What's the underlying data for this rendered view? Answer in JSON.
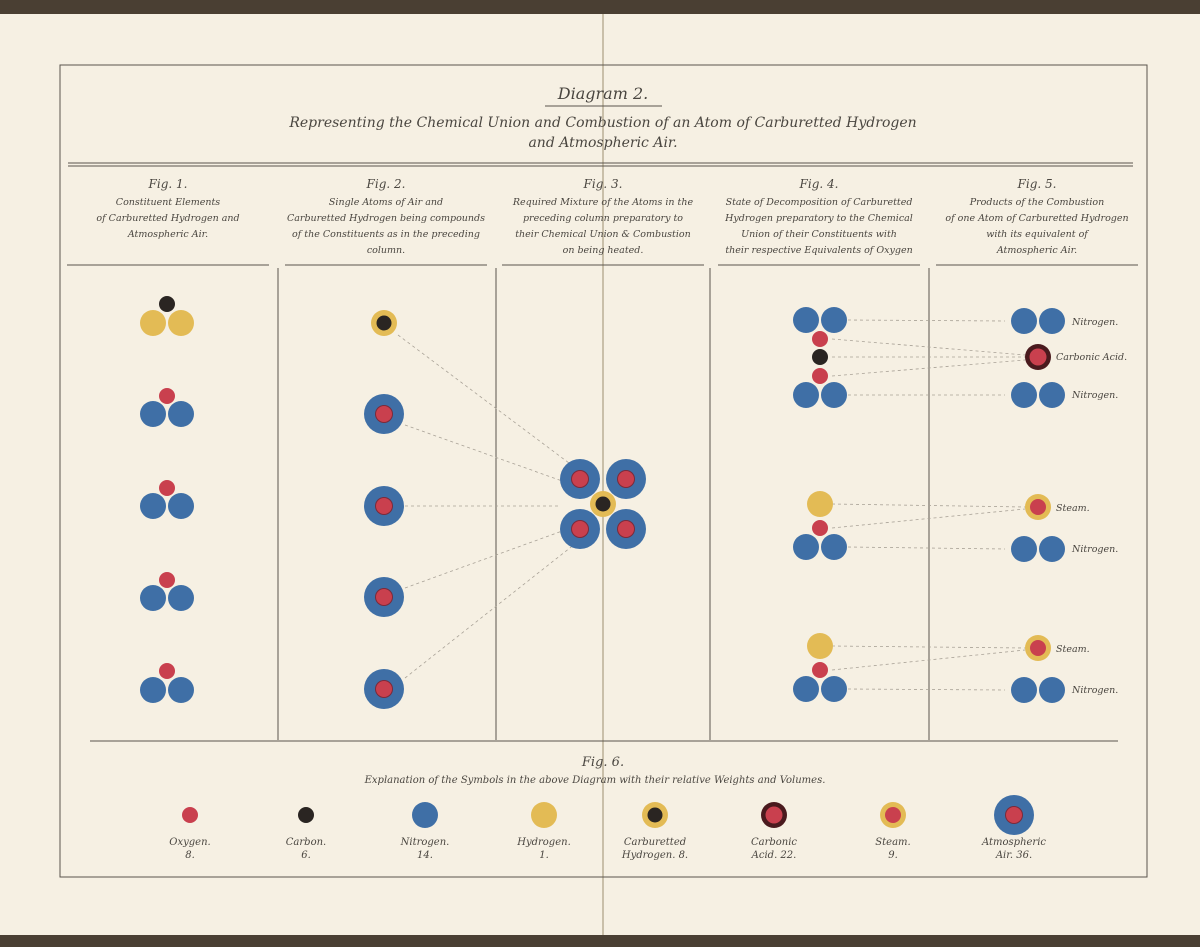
{
  "title": "Diagram 2.",
  "subtitle_line1": "Representing the Chemical Union and Combustion of an Atom of Carburetted Hydrogen",
  "subtitle_line2": "and Atmospheric Air.",
  "figures": [
    {
      "label": "Fig. 1.",
      "lines": [
        "Constituent Elements",
        "of Carburetted Hydrogen and",
        "Atmospheric Air."
      ]
    },
    {
      "label": "Fig. 2.",
      "lines": [
        "Single Atoms of Air and",
        "Carburetted Hydrogen being compounds",
        "of the Constituents as in the preceding",
        "column."
      ]
    },
    {
      "label": "Fig. 3.",
      "lines": [
        "Required Mixture of the Atoms in the",
        "preceding column preparatory to",
        "their Chemical Union & Combustion",
        "on being heated."
      ]
    },
    {
      "label": "Fig. 4.",
      "lines": [
        "State of Decomposition of Carburetted",
        "Hydrogen preparatory to the Chemical",
        "Union of their Constituents with",
        "their respective Equivalents of Oxygen"
      ]
    },
    {
      "label": "Fig. 5.",
      "lines": [
        "Products of the Combustion",
        "of one Atom of Carburetted Hydrogen",
        "with its equivalent of",
        "Atmospheric Air."
      ]
    }
  ],
  "fig5_labels": [
    "Nitrogen.",
    "Carbonic Acid.",
    "Nitrogen.",
    "Steam.",
    "Nitrogen.",
    "Steam.",
    "Nitrogen."
  ],
  "fig6": {
    "label": "Fig. 6.",
    "caption": "Explanation of the Symbols in the above Diagram with their relative Weights and Volumes.",
    "legend": [
      {
        "name": "Oxygen.",
        "weight": "8."
      },
      {
        "name": "Carbon.",
        "weight": "6."
      },
      {
        "name": "Nitrogen.",
        "weight": "14."
      },
      {
        "name": "Hydrogen.",
        "weight": "1."
      },
      {
        "name": "Carburetted",
        "weight": "Hydrogen. 8."
      },
      {
        "name": "Carbonic",
        "weight": "Acid. 22."
      },
      {
        "name": "Steam.",
        "weight": "9."
      },
      {
        "name": "Atmospheric",
        "weight": "Air. 36."
      }
    ]
  },
  "colors": {
    "oxygen": "#c9404e",
    "carbon": "#2a2522",
    "nitrogen": "#3f6fa6",
    "hydrogen": "#e3bb55",
    "carbonic_ring": "#4a1a1e",
    "paper": "#f6f0e3",
    "ink": "#4a4640"
  }
}
